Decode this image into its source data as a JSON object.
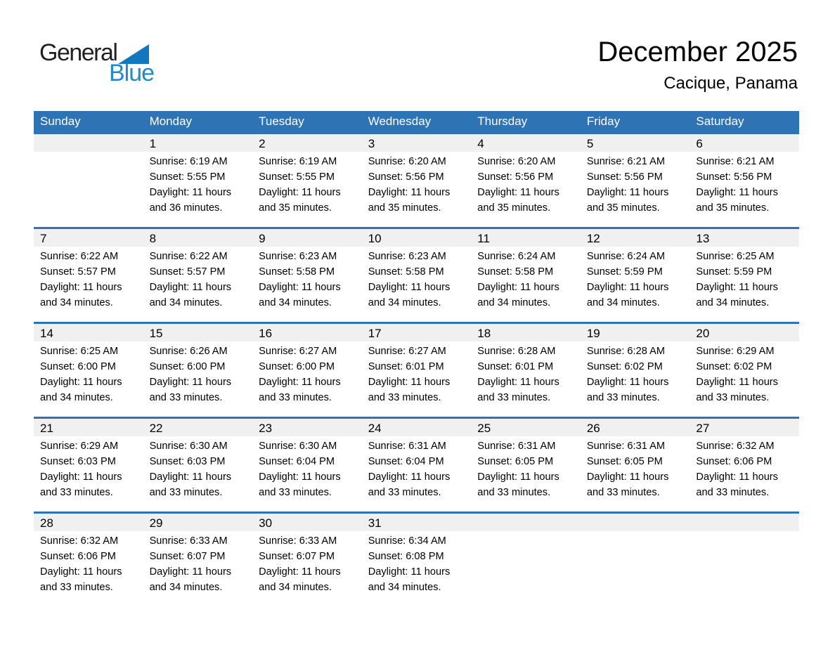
{
  "logo": {
    "word_dark": "General",
    "word_blue": "Blue",
    "triangle_icon": "blue-right-triangle"
  },
  "header": {
    "title": "December 2025",
    "subtitle": "Cacique, Panama"
  },
  "colors": {
    "header_bar_blue": "#2E74B5",
    "week_border_blue": "#2E74B5",
    "day_strip_gray": "#F0F0F0",
    "weekday_text": "#FFFFFF",
    "body_text": "#000000",
    "logo_dark": "#231F20",
    "logo_blue": "#1E8BCB",
    "logo_triangle_blue": "#1377BE"
  },
  "labels": {
    "sunrise": "Sunrise:",
    "sunset": "Sunset:",
    "daylight": "Daylight:"
  },
  "weekday_headers": [
    "Sunday",
    "Monday",
    "Tuesday",
    "Wednesday",
    "Thursday",
    "Friday",
    "Saturday"
  ],
  "weeks": [
    [
      {
        "day": null
      },
      {
        "day": "1",
        "sunrise": "6:19 AM",
        "sunset": "5:55 PM",
        "daylight1": "11 hours",
        "daylight2": "and 36 minutes."
      },
      {
        "day": "2",
        "sunrise": "6:19 AM",
        "sunset": "5:55 PM",
        "daylight1": "11 hours",
        "daylight2": "and 35 minutes."
      },
      {
        "day": "3",
        "sunrise": "6:20 AM",
        "sunset": "5:56 PM",
        "daylight1": "11 hours",
        "daylight2": "and 35 minutes."
      },
      {
        "day": "4",
        "sunrise": "6:20 AM",
        "sunset": "5:56 PM",
        "daylight1": "11 hours",
        "daylight2": "and 35 minutes."
      },
      {
        "day": "5",
        "sunrise": "6:21 AM",
        "sunset": "5:56 PM",
        "daylight1": "11 hours",
        "daylight2": "and 35 minutes."
      },
      {
        "day": "6",
        "sunrise": "6:21 AM",
        "sunset": "5:56 PM",
        "daylight1": "11 hours",
        "daylight2": "and 35 minutes."
      }
    ],
    [
      {
        "day": "7",
        "sunrise": "6:22 AM",
        "sunset": "5:57 PM",
        "daylight1": "11 hours",
        "daylight2": "and 34 minutes."
      },
      {
        "day": "8",
        "sunrise": "6:22 AM",
        "sunset": "5:57 PM",
        "daylight1": "11 hours",
        "daylight2": "and 34 minutes."
      },
      {
        "day": "9",
        "sunrise": "6:23 AM",
        "sunset": "5:58 PM",
        "daylight1": "11 hours",
        "daylight2": "and 34 minutes."
      },
      {
        "day": "10",
        "sunrise": "6:23 AM",
        "sunset": "5:58 PM",
        "daylight1": "11 hours",
        "daylight2": "and 34 minutes."
      },
      {
        "day": "11",
        "sunrise": "6:24 AM",
        "sunset": "5:58 PM",
        "daylight1": "11 hours",
        "daylight2": "and 34 minutes."
      },
      {
        "day": "12",
        "sunrise": "6:24 AM",
        "sunset": "5:59 PM",
        "daylight1": "11 hours",
        "daylight2": "and 34 minutes."
      },
      {
        "day": "13",
        "sunrise": "6:25 AM",
        "sunset": "5:59 PM",
        "daylight1": "11 hours",
        "daylight2": "and 34 minutes."
      }
    ],
    [
      {
        "day": "14",
        "sunrise": "6:25 AM",
        "sunset": "6:00 PM",
        "daylight1": "11 hours",
        "daylight2": "and 34 minutes."
      },
      {
        "day": "15",
        "sunrise": "6:26 AM",
        "sunset": "6:00 PM",
        "daylight1": "11 hours",
        "daylight2": "and 33 minutes."
      },
      {
        "day": "16",
        "sunrise": "6:27 AM",
        "sunset": "6:00 PM",
        "daylight1": "11 hours",
        "daylight2": "and 33 minutes."
      },
      {
        "day": "17",
        "sunrise": "6:27 AM",
        "sunset": "6:01 PM",
        "daylight1": "11 hours",
        "daylight2": "and 33 minutes."
      },
      {
        "day": "18",
        "sunrise": "6:28 AM",
        "sunset": "6:01 PM",
        "daylight1": "11 hours",
        "daylight2": "and 33 minutes."
      },
      {
        "day": "19",
        "sunrise": "6:28 AM",
        "sunset": "6:02 PM",
        "daylight1": "11 hours",
        "daylight2": "and 33 minutes."
      },
      {
        "day": "20",
        "sunrise": "6:29 AM",
        "sunset": "6:02 PM",
        "daylight1": "11 hours",
        "daylight2": "and 33 minutes."
      }
    ],
    [
      {
        "day": "21",
        "sunrise": "6:29 AM",
        "sunset": "6:03 PM",
        "daylight1": "11 hours",
        "daylight2": "and 33 minutes."
      },
      {
        "day": "22",
        "sunrise": "6:30 AM",
        "sunset": "6:03 PM",
        "daylight1": "11 hours",
        "daylight2": "and 33 minutes."
      },
      {
        "day": "23",
        "sunrise": "6:30 AM",
        "sunset": "6:04 PM",
        "daylight1": "11 hours",
        "daylight2": "and 33 minutes."
      },
      {
        "day": "24",
        "sunrise": "6:31 AM",
        "sunset": "6:04 PM",
        "daylight1": "11 hours",
        "daylight2": "and 33 minutes."
      },
      {
        "day": "25",
        "sunrise": "6:31 AM",
        "sunset": "6:05 PM",
        "daylight1": "11 hours",
        "daylight2": "and 33 minutes."
      },
      {
        "day": "26",
        "sunrise": "6:31 AM",
        "sunset": "6:05 PM",
        "daylight1": "11 hours",
        "daylight2": "and 33 minutes."
      },
      {
        "day": "27",
        "sunrise": "6:32 AM",
        "sunset": "6:06 PM",
        "daylight1": "11 hours",
        "daylight2": "and 33 minutes."
      }
    ],
    [
      {
        "day": "28",
        "sunrise": "6:32 AM",
        "sunset": "6:06 PM",
        "daylight1": "11 hours",
        "daylight2": "and 33 minutes."
      },
      {
        "day": "29",
        "sunrise": "6:33 AM",
        "sunset": "6:07 PM",
        "daylight1": "11 hours",
        "daylight2": "and 34 minutes."
      },
      {
        "day": "30",
        "sunrise": "6:33 AM",
        "sunset": "6:07 PM",
        "daylight1": "11 hours",
        "daylight2": "and 34 minutes."
      },
      {
        "day": "31",
        "sunrise": "6:34 AM",
        "sunset": "6:08 PM",
        "daylight1": "11 hours",
        "daylight2": "and 34 minutes."
      },
      {
        "day": null
      },
      {
        "day": null
      },
      {
        "day": null
      }
    ]
  ]
}
